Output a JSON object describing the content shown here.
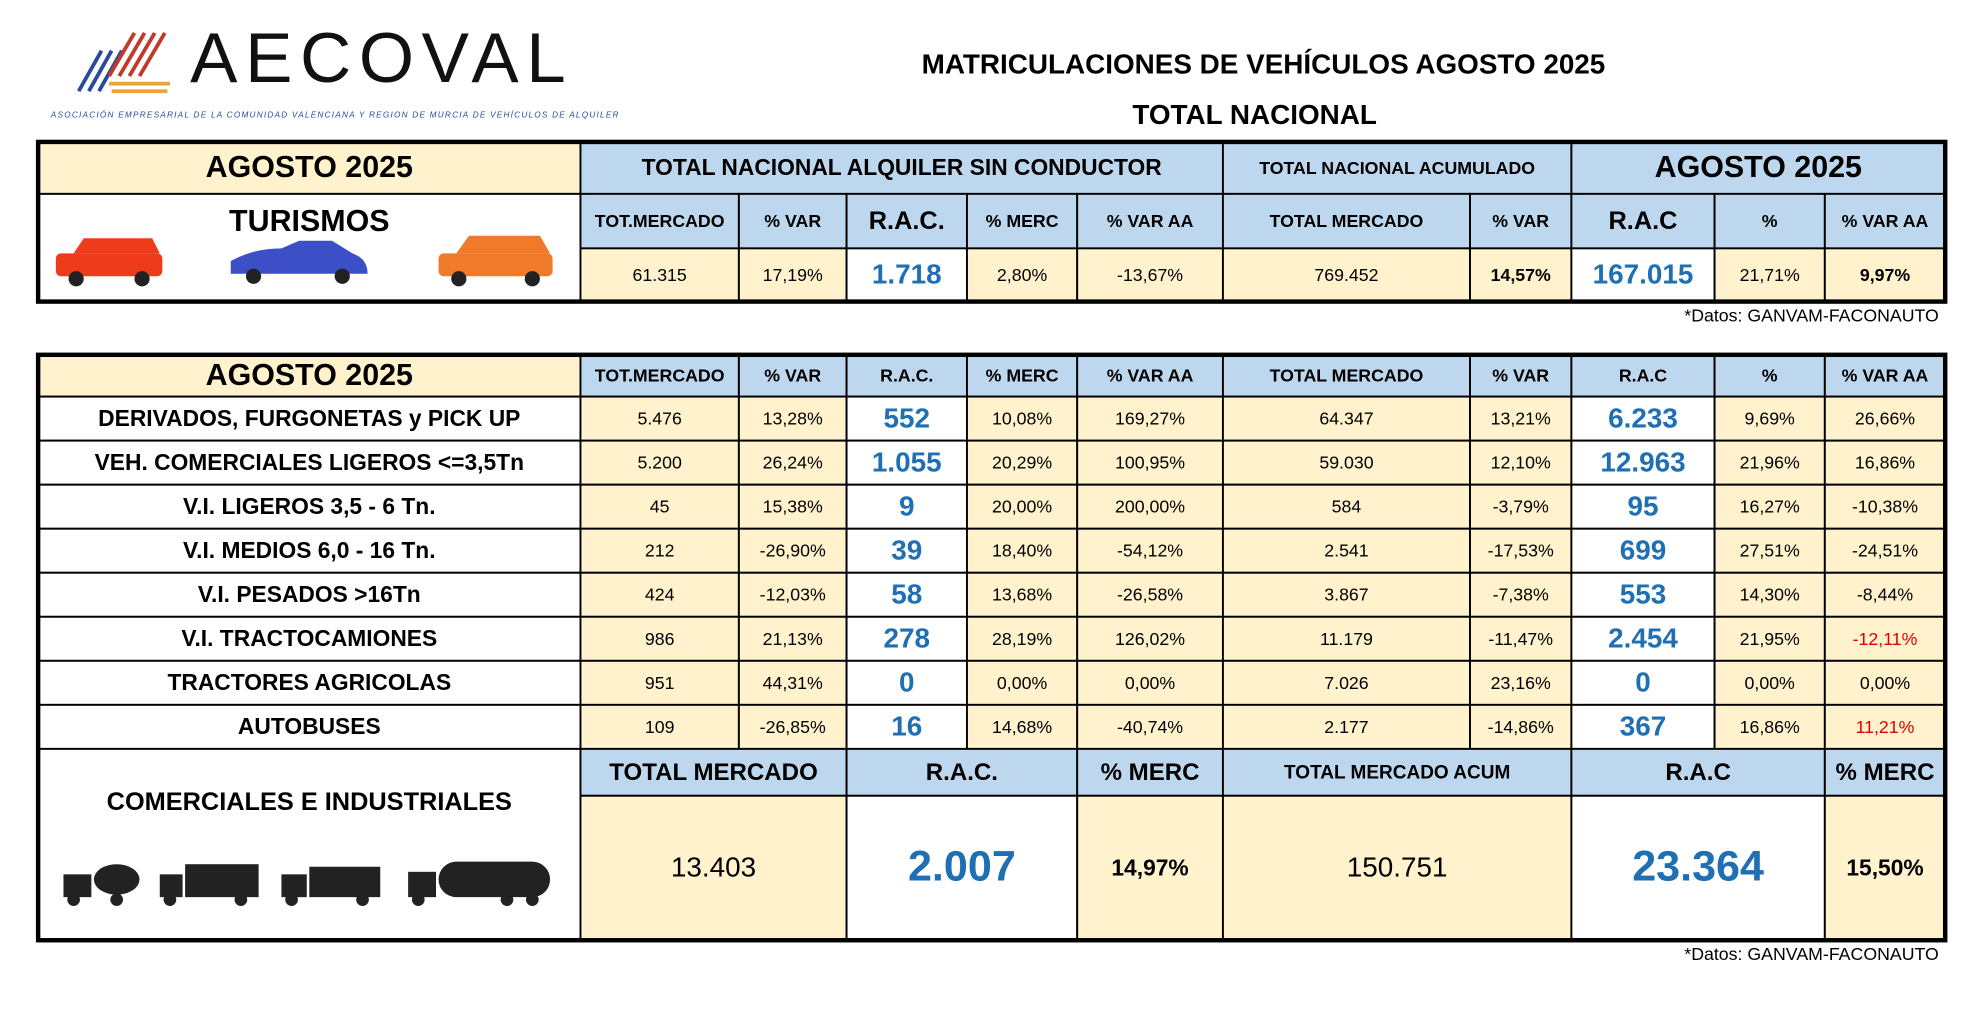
{
  "header": {
    "logo": "AECOVAL",
    "logo_subtitle": "ASOCIACIÓN EMPRESARIAL DE LA COMUNIDAD VALENCIANA Y REGION DE MURCIA DE VEHÍCULOS DE ALQUILER",
    "title": "MATRICULACIONES DE VEHÍCULOS AGOSTO 2025",
    "subtitle": "TOTAL NACIONAL"
  },
  "turismos": {
    "period": "AGOSTO 2025",
    "label": "TURISMOS",
    "group_headers": [
      "TOTAL NACIONAL ALQUILER SIN CONDUCTOR",
      "TOTAL NACIONAL ACUMULADO",
      "AGOSTO 2025"
    ],
    "columns": [
      "TOT.MERCADO",
      "% VAR",
      "R.A.C.",
      "% MERC",
      "% VAR AA",
      "TOTAL MERCADO",
      "% VAR",
      "R.A.C",
      "%",
      "% VAR AA"
    ],
    "values": [
      "61.315",
      "17,19%",
      "1.718",
      "2,80%",
      "-13,67%",
      "769.452",
      "14,57%",
      "167.015",
      "21,71%",
      "9,97%"
    ],
    "bold_columns": [
      6,
      9
    ],
    "source": "*Datos: GANVAM-FACONAUTO"
  },
  "comerciales": {
    "period": "AGOSTO 2025",
    "columns": [
      "TOT.MERCADO",
      "% VAR",
      "R.A.C.",
      "% MERC",
      "% VAR AA",
      "TOTAL MERCADO",
      "% VAR",
      "R.A.C",
      "%",
      "% VAR AA"
    ],
    "alert_color": "#e00000",
    "rows": [
      {
        "label": "DERIVADOS, FURGONETAS y PICK UP",
        "values": [
          "5.476",
          "13,28%",
          "552",
          "10,08%",
          "169,27%",
          "64.347",
          "13,21%",
          "6.233",
          "9,69%",
          "26,66%"
        ]
      },
      {
        "label": "VEH. COMERCIALES LIGEROS <=3,5Tn",
        "values": [
          "5.200",
          "26,24%",
          "1.055",
          "20,29%",
          "100,95%",
          "59.030",
          "12,10%",
          "12.963",
          "21,96%",
          "16,86%"
        ]
      },
      {
        "label": "V.I. LIGEROS 3,5 - 6 Tn.",
        "values": [
          "45",
          "15,38%",
          "9",
          "20,00%",
          "200,00%",
          "584",
          "-3,79%",
          "95",
          "16,27%",
          "-10,38%"
        ]
      },
      {
        "label": "V.I. MEDIOS 6,0 - 16 Tn.",
        "values": [
          "212",
          "-26,90%",
          "39",
          "18,40%",
          "-54,12%",
          "2.541",
          "-17,53%",
          "699",
          "27,51%",
          "-24,51%"
        ]
      },
      {
        "label": "V.I. PESADOS >16Tn",
        "values": [
          "424",
          "-12,03%",
          "58",
          "13,68%",
          "-26,58%",
          "3.867",
          "-7,38%",
          "553",
          "14,30%",
          "-8,44%"
        ]
      },
      {
        "label": "V.I. TRACTOCAMIONES",
        "values": [
          "986",
          "21,13%",
          "278",
          "28,19%",
          "126,02%",
          "11.179",
          "-11,47%",
          "2.454",
          "21,95%",
          "-12,11%"
        ],
        "alert_columns": [
          9
        ]
      },
      {
        "label": "TRACTORES AGRICOLAS",
        "values": [
          "951",
          "44,31%",
          "0",
          "0,00%",
          "0,00%",
          "7.026",
          "23,16%",
          "0",
          "0,00%",
          "0,00%"
        ]
      },
      {
        "label": "AUTOBUSES",
        "values": [
          "109",
          "-26,85%",
          "16",
          "14,68%",
          "-40,74%",
          "2.177",
          "-14,86%",
          "367",
          "16,86%",
          "11,21%"
        ],
        "alert_columns": [
          9
        ]
      }
    ],
    "totals": {
      "label": "COMERCIALES E INDUSTRIALES",
      "columns": [
        "TOTAL MERCADO",
        "R.A.C.",
        "% MERC",
        "TOTAL MERCADO ACUM",
        "R.A.C",
        "% MERC"
      ],
      "values": [
        "13.403",
        "2.007",
        "14,97%",
        "150.751",
        "23.364",
        "15,50%"
      ]
    },
    "source": "*Datos: GANVAM-FACONAUTO"
  }
}
